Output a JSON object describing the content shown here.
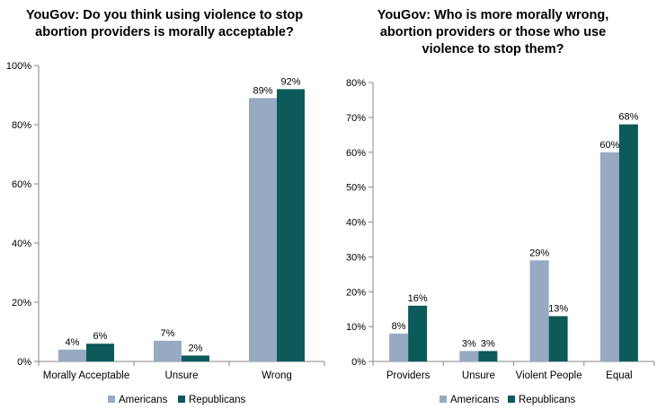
{
  "colors": {
    "americans": "#98a9c2",
    "republicans": "#0d5a5a",
    "axis": "#888888"
  },
  "chart_data": [
    {
      "type": "bar",
      "title_lines": [
        "YouGov: Do you think using violence to stop",
        "abortion providers is morally acceptable?"
      ],
      "categories": [
        "Morally Acceptable",
        "Unsure",
        "Wrong"
      ],
      "series": [
        {
          "name": "Americans",
          "values": [
            4,
            7,
            89
          ]
        },
        {
          "name": "Republicans",
          "values": [
            6,
            2,
            92
          ]
        }
      ],
      "data_labels": [
        [
          "4%",
          "7%",
          "89%"
        ],
        [
          "6%",
          "2%",
          "92%"
        ]
      ],
      "ylim": [
        0,
        100
      ],
      "yticks": [
        0,
        20,
        40,
        60,
        80,
        100
      ],
      "ytick_labels": [
        "0%",
        "20%",
        "40%",
        "60%",
        "80%",
        "100%"
      ],
      "legend": "bottom",
      "grid": false
    },
    {
      "type": "bar",
      "title_lines": [
        "YouGov: Who is more morally wrong,",
        "abortion providers or those who use",
        "violence to stop them?"
      ],
      "categories": [
        "Providers",
        "Unsure",
        "Violent People",
        "Equal"
      ],
      "series": [
        {
          "name": "Americans",
          "values": [
            8,
            3,
            29,
            60
          ]
        },
        {
          "name": "Republicans",
          "values": [
            16,
            3,
            13,
            68
          ]
        }
      ],
      "data_labels": [
        [
          "8%",
          "3%",
          "29%",
          "60%"
        ],
        [
          "16%",
          "3%",
          "13%",
          "68%"
        ]
      ],
      "ylim": [
        0,
        80
      ],
      "yticks": [
        0,
        10,
        20,
        30,
        40,
        50,
        60,
        70,
        80
      ],
      "ytick_labels": [
        "0%",
        "10%",
        "20%",
        "30%",
        "40%",
        "50%",
        "60%",
        "70%",
        "80%"
      ],
      "legend": "bottom",
      "grid": false
    }
  ]
}
